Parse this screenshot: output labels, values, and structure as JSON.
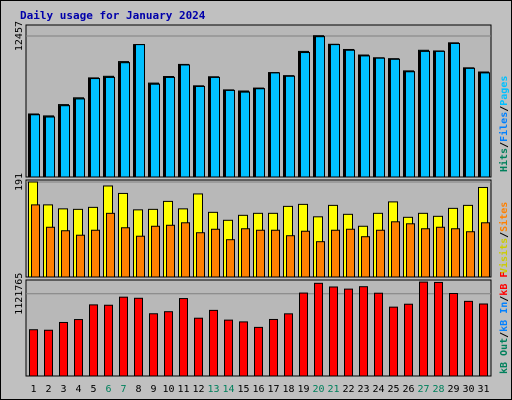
{
  "chart_data": {
    "type": "bar",
    "title": "Daily usage for January 2024",
    "x": [
      "1",
      "2",
      "3",
      "4",
      "5",
      "6",
      "7",
      "8",
      "9",
      "10",
      "11",
      "12",
      "13",
      "14",
      "15",
      "16",
      "17",
      "18",
      "19",
      "20",
      "21",
      "22",
      "23",
      "24",
      "25",
      "26",
      "27",
      "28",
      "29",
      "30",
      "31"
    ],
    "weekend_days": [
      "6",
      "7",
      "13",
      "14",
      "20",
      "21",
      "27",
      "28"
    ],
    "panels": [
      {
        "id": "top",
        "ytick_label": "12457",
        "ytick_value": 12457,
        "ymax": 13257,
        "series": [
          {
            "name": "Hits",
            "color": "#00805C",
            "values": [
              5570,
              5400,
              6400,
              7000,
              8760,
              8900,
              10200,
              11700,
              8300,
              8880,
              9950,
              8060,
              8860,
              7700,
              7600,
              7860,
              9230,
              8960,
              11100,
              12490,
              11730,
              11270,
              10780,
              10540,
              10460,
              9380,
              11200,
              11140,
              11860,
              9650,
              9280
            ]
          },
          {
            "name": "Files",
            "color": "#0080FF",
            "values": [
              5500,
              5300,
              6300,
              6900,
              8700,
              8800,
              10100,
              11700,
              8200,
              8800,
              9900,
              8000,
              8800,
              7650,
              7500,
              7800,
              9200,
              8900,
              11000,
              12400,
              11700,
              11200,
              10700,
              10500,
              10400,
              9300,
              11100,
              11100,
              11800,
              9600,
              9200
            ]
          },
          {
            "name": "Pages",
            "color": "#00C0FF",
            "values": [
              5500,
              5300,
              6300,
              6900,
              8700,
              8800,
              10100,
              11700,
              8200,
              8800,
              9900,
              8000,
              8800,
              7650,
              7500,
              7800,
              9200,
              8900,
              11000,
              12400,
              11700,
              11200,
              10700,
              10500,
              10400,
              9300,
              11100,
              11100,
              11800,
              9600,
              9200
            ]
          }
        ]
      },
      {
        "id": "middle",
        "ytick_label": "191",
        "ytick_value": 191,
        "ymax": 191,
        "series": [
          {
            "name": "Visits",
            "color": "#FFFF00",
            "values": [
              191,
              145,
              137,
              136,
              140,
              183,
              168,
              135,
              136,
              152,
              137,
              167,
              130,
              114,
              124,
              128,
              128,
              142,
              146,
              121,
              144,
              126,
              102,
              128,
              151,
              120,
              128,
              122,
              138,
              144,
              180
            ]
          },
          {
            "name": "Sites",
            "color": "#FF8000",
            "values": [
              145,
              100,
              93,
              84,
              94,
              128,
              99,
              82,
              102,
              104,
              109,
              89,
              96,
              75,
              97,
              94,
              94,
              83,
              92,
              71,
              94,
              96,
              81,
              94,
              111,
              107,
              97,
              100,
              97,
              91,
              109
            ]
          }
        ]
      },
      {
        "id": "bottom",
        "ytick_label": "1121765",
        "ytick_value": 1121765,
        "ymax": 1282000,
        "series": [
          {
            "name": "KBytes",
            "color": "#FF0000",
            "values": [
              631000,
              624000,
              730000,
              770000,
              970000,
              965000,
              1075000,
              1060000,
              849000,
              877000,
              1056000,
              788000,
              895000,
              762000,
              738000,
              663000,
              771000,
              848000,
              1131000,
              1264000,
              1214000,
              1185000,
              1218000,
              1129000,
              939000,
              979000,
              1281000,
              1276000,
              1125000,
              1018000,
              982000
            ]
          }
        ]
      }
    ],
    "legend": {
      "top": [
        {
          "text": "Hits",
          "color": "#00805C"
        },
        {
          "text": "/",
          "color": "#000000"
        },
        {
          "text": "Files",
          "color": "#0080FF"
        },
        {
          "text": "/",
          "color": "#000000"
        },
        {
          "text": "Pages",
          "color": "#00C0FF"
        }
      ],
      "middle": [
        {
          "text": "Visits",
          "color": "#CCCC00"
        },
        {
          "text": "/",
          "color": "#000000"
        },
        {
          "text": "Sites",
          "color": "#FF8000"
        }
      ],
      "bottom": [
        {
          "text": "kB Out",
          "color": "#00805C"
        },
        {
          "text": "/",
          "color": "#000000"
        },
        {
          "text": "kB In",
          "color": "#0080FF"
        },
        {
          "text": "/",
          "color": "#000000"
        },
        {
          "text": "kB F",
          "color": "#FF0000"
        }
      ]
    },
    "colors": {
      "background": "#C0C0C0",
      "panel": "#B8B8B8",
      "title": "#0000AA",
      "weekday_label": "#000000",
      "weekend_label": "#00805C"
    }
  }
}
